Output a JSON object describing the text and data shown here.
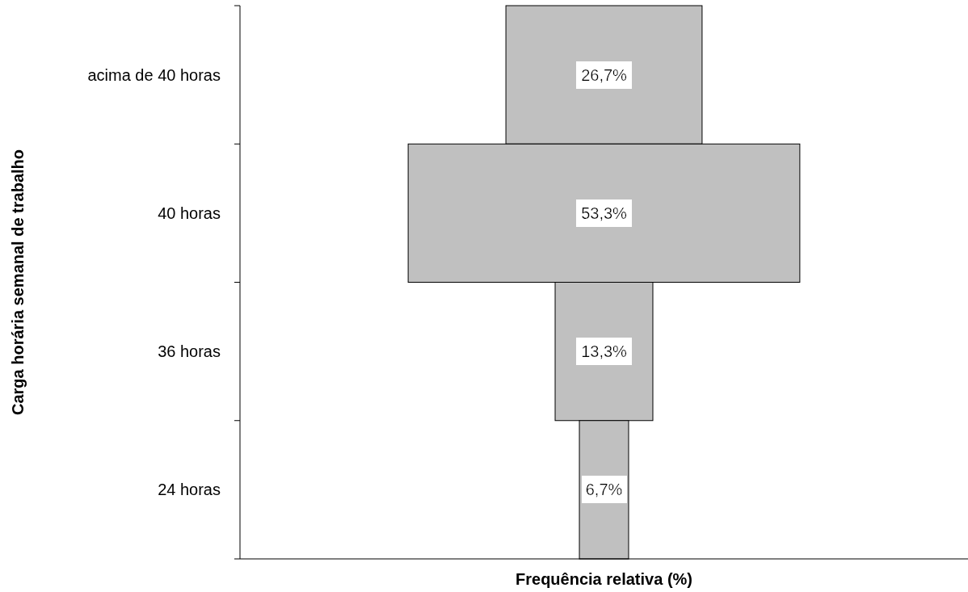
{
  "chart_data": {
    "type": "other",
    "xlabel": "Frequência relativa (%)",
    "ylabel": "Carga horária semanal de trabalho",
    "categories": [
      "acima de 40 horas",
      "40 horas",
      "36 horas",
      "24 horas"
    ],
    "values": [
      26.7,
      53.3,
      13.3,
      6.7
    ],
    "value_labels": [
      "26,7%",
      "53,3%",
      "13,3%",
      "6,7%"
    ],
    "color": "#c0c0c0"
  }
}
